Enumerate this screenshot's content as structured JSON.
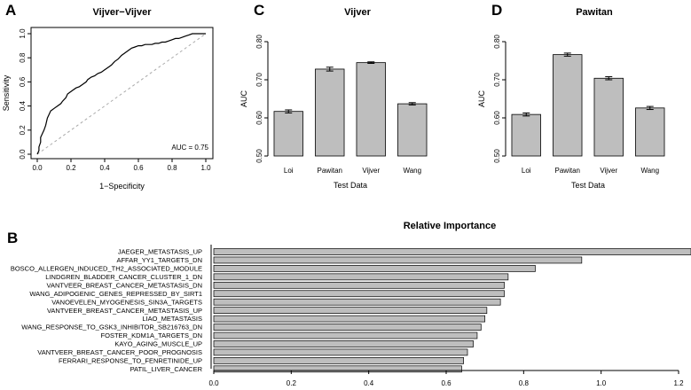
{
  "panels": {
    "a": {
      "letter": "A"
    },
    "b": {
      "letter": "B"
    },
    "c": {
      "letter": "C"
    },
    "d": {
      "letter": "D"
    }
  },
  "chart_data": [
    {
      "id": "A",
      "type": "line",
      "title": "Vijver−Vijver",
      "xlabel": "1−Specificity",
      "ylabel": "Sensitivity",
      "xlim": [
        0,
        1
      ],
      "ylim": [
        0,
        1
      ],
      "xticks": [
        "0.0",
        "0.2",
        "0.4",
        "0.6",
        "0.8",
        "1.0"
      ],
      "yticks": [
        "0.0",
        "0.2",
        "0.4",
        "0.6",
        "0.8",
        "1.0"
      ],
      "annotation": "AUC = 0.75",
      "diagonal": true,
      "roc": {
        "x": [
          0.0,
          0.01,
          0.01,
          0.02,
          0.02,
          0.03,
          0.04,
          0.05,
          0.06,
          0.07,
          0.08,
          0.09,
          0.1,
          0.12,
          0.14,
          0.15,
          0.17,
          0.18,
          0.2,
          0.21,
          0.23,
          0.25,
          0.27,
          0.29,
          0.3,
          0.32,
          0.34,
          0.36,
          0.38,
          0.4,
          0.42,
          0.44,
          0.46,
          0.48,
          0.5,
          0.52,
          0.54,
          0.56,
          0.58,
          0.6,
          0.62,
          0.64,
          0.66,
          0.68,
          0.7,
          0.72,
          0.74,
          0.76,
          0.78,
          0.8,
          0.82,
          0.84,
          0.86,
          0.88,
          0.9,
          0.92,
          0.94,
          0.96,
          1.0
        ],
        "y": [
          0.0,
          0.03,
          0.06,
          0.1,
          0.14,
          0.17,
          0.2,
          0.24,
          0.3,
          0.33,
          0.36,
          0.37,
          0.38,
          0.4,
          0.42,
          0.44,
          0.47,
          0.5,
          0.52,
          0.53,
          0.55,
          0.56,
          0.58,
          0.6,
          0.62,
          0.64,
          0.65,
          0.67,
          0.68,
          0.7,
          0.72,
          0.74,
          0.77,
          0.79,
          0.82,
          0.84,
          0.86,
          0.88,
          0.89,
          0.9,
          0.9,
          0.91,
          0.91,
          0.91,
          0.92,
          0.92,
          0.93,
          0.93,
          0.94,
          0.95,
          0.96,
          0.96,
          0.97,
          0.98,
          0.99,
          1.0,
          1.0,
          1.0,
          1.0
        ]
      }
    },
    {
      "id": "C",
      "type": "bar",
      "title": "Vijver",
      "xlabel": "Test Data",
      "ylabel": "AUC",
      "categories": [
        "Loi",
        "Pawitan",
        "Vijver",
        "Wang"
      ],
      "values": [
        0.617,
        0.728,
        0.745,
        0.637
      ],
      "errors": [
        0.004,
        0.005,
        0.002,
        0.003
      ],
      "ylim": [
        0.5,
        0.8
      ],
      "yticks": [
        "0.50",
        "0.60",
        "0.70",
        "0.80"
      ]
    },
    {
      "id": "D",
      "type": "bar",
      "title": "Pawitan",
      "xlabel": "Test Data",
      "ylabel": "AUC",
      "categories": [
        "Loi",
        "Pawitan",
        "Vijver",
        "Wang"
      ],
      "values": [
        0.609,
        0.766,
        0.704,
        0.626
      ],
      "errors": [
        0.004,
        0.004,
        0.004,
        0.004
      ],
      "ylim": [
        0.5,
        0.8
      ],
      "yticks": [
        "0.50",
        "0.60",
        "0.70",
        "0.80"
      ]
    },
    {
      "id": "B",
      "type": "bar",
      "orientation": "horizontal",
      "title": "Relative Importance",
      "categories": [
        "JAEGER_METASTASIS_UP",
        "AFFAR_YY1_TARGETS_DN",
        "BOSCO_ALLERGEN_INDUCED_TH2_ASSOCIATED_MODULE",
        "LINDGREN_BLADDER_CANCER_CLUSTER_1_DN",
        "VANTVEER_BREAST_CANCER_METASTASIS_DN",
        "WANG_ADIPOGENIC_GENES_REPRESSED_BY_SIRT1",
        "VANOEVELEN_MYOGENESIS_SIN3A_TARGETS",
        "VANTVEER_BREAST_CANCER_METASTASIS_UP",
        "LIAO_METASTASIS",
        "WANG_RESPONSE_TO_GSK3_INHIBITOR_SB216763_DN",
        "FOSTER_KDM1A_TARGETS_DN",
        "KAYO_AGING_MUSCLE_UP",
        "VANTVEER_BREAST_CANCER_POOR_PROGNOSIS",
        "FERRARI_RESPONSE_TO_FENRETINIDE_UP",
        "PATIL_LIVER_CANCER"
      ],
      "values": [
        1.24,
        0.95,
        0.83,
        0.76,
        0.75,
        0.75,
        0.74,
        0.705,
        0.7,
        0.69,
        0.68,
        0.67,
        0.655,
        0.645,
        0.64
      ],
      "xlim": [
        0,
        1.2
      ],
      "xticks": [
        "0.0",
        "0.2",
        "0.4",
        "0.6",
        "0.8",
        "1.0",
        "1.2"
      ]
    }
  ]
}
